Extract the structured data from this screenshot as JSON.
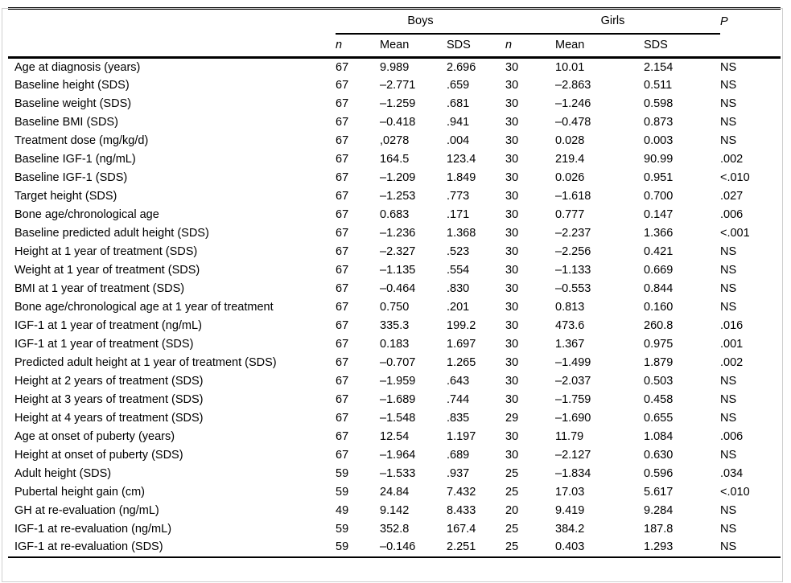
{
  "header": {
    "groups": [
      {
        "label": "Boys",
        "subcols": [
          "n",
          "Mean",
          "SDS"
        ]
      },
      {
        "label": "Girls",
        "subcols": [
          "n",
          "Mean",
          "SDS"
        ]
      }
    ],
    "p_label": "P"
  },
  "rows": [
    [
      "Age at diagnosis (years)",
      "67",
      "9.989",
      "2.696",
      "30",
      "10.01",
      "2.154",
      "NS"
    ],
    [
      "Baseline height (SDS)",
      "67",
      "–2.771",
      ".659",
      "30",
      "–2.863",
      "0.511",
      "NS"
    ],
    [
      "Baseline weight (SDS)",
      "67",
      "–1.259",
      ".681",
      "30",
      "–1.246",
      "0.598",
      "NS"
    ],
    [
      "Baseline BMI (SDS)",
      "67",
      "–0.418",
      ".941",
      "30",
      "–0.478",
      "0.873",
      "NS"
    ],
    [
      "Treatment dose (mg/kg/d)",
      "67",
      ",0278",
      ".004",
      "30",
      "0.028",
      "0.003",
      "NS"
    ],
    [
      "Baseline IGF-1 (ng/mL)",
      "67",
      "164.5",
      "123.4",
      "30",
      "219.4",
      "90.99",
      ".002"
    ],
    [
      "Baseline IGF-1 (SDS)",
      "67",
      "–1.209",
      "1.849",
      "30",
      "0.026",
      "0.951",
      "<.010"
    ],
    [
      "Target height (SDS)",
      "67",
      "–1.253",
      ".773",
      "30",
      "–1.618",
      "0.700",
      ".027"
    ],
    [
      "Bone age/chronological age",
      "67",
      "0.683",
      ".171",
      "30",
      "0.777",
      "0.147",
      ".006"
    ],
    [
      "Baseline predicted adult height (SDS)",
      "67",
      "–1.236",
      "1.368",
      "30",
      "–2.237",
      "1.366",
      "<.001"
    ],
    [
      "Height at 1 year of treatment (SDS)",
      "67",
      "–2.327",
      ".523",
      "30",
      "–2.256",
      "0.421",
      "NS"
    ],
    [
      "Weight at 1 year of treatment (SDS)",
      "67",
      "–1.135",
      ".554",
      "30",
      "–1.133",
      "0.669",
      "NS"
    ],
    [
      "BMI at 1 year of treatment (SDS)",
      "67",
      "–0.464",
      ".830",
      "30",
      "–0.553",
      "0.844",
      "NS"
    ],
    [
      "Bone age/chronological age at 1 year of treatment",
      "67",
      "0.750",
      ".201",
      "30",
      "0.813",
      "0.160",
      "NS"
    ],
    [
      "IGF-1 at 1 year of treatment (ng/mL)",
      "67",
      "335.3",
      "199.2",
      "30",
      "473.6",
      "260.8",
      ".016"
    ],
    [
      "IGF-1 at 1 year of treatment (SDS)",
      "67",
      "0.183",
      "1.697",
      "30",
      "1.367",
      "0.975",
      ".001"
    ],
    [
      "Predicted adult height at 1 year of treatment (SDS)",
      "67",
      "–0.707",
      "1.265",
      "30",
      "–1.499",
      "1.879",
      ".002"
    ],
    [
      "Height at 2 years of treatment (SDS)",
      "67",
      "–1.959",
      ".643",
      "30",
      "–2.037",
      "0.503",
      "NS"
    ],
    [
      "Height at 3 years of treatment (SDS)",
      "67",
      "–1.689",
      ".744",
      "30",
      "–1.759",
      "0.458",
      "NS"
    ],
    [
      "Height at 4 years of treatment (SDS)",
      "67",
      "–1.548",
      ".835",
      "29",
      "–1.690",
      "0.655",
      "NS"
    ],
    [
      "Age at onset of puberty (years)",
      "67",
      "12.54",
      "1.197",
      "30",
      "11.79",
      "1.084",
      ".006"
    ],
    [
      "Height at onset of puberty (SDS)",
      "67",
      "–1.964",
      ".689",
      "30",
      "–2.127",
      "0.630",
      "NS"
    ],
    [
      "Adult height (SDS)",
      "59",
      "–1.533",
      ".937",
      "25",
      "–1.834",
      "0.596",
      ".034"
    ],
    [
      "Pubertal height gain (cm)",
      "59",
      "24.84",
      "7.432",
      "25",
      "17.03",
      "5.617",
      "<.010"
    ],
    [
      "GH at re-evaluation (ng/mL)",
      "49",
      "9.142",
      "8.433",
      "20",
      "9.419",
      "9.284",
      "NS"
    ],
    [
      "IGF-1 at re-evaluation (ng/mL)",
      "59",
      "352.8",
      "167.4",
      "25",
      "384.2",
      "187.8",
      "NS"
    ],
    [
      "IGF-1 at re-evaluation (SDS)",
      "59",
      "–0.146",
      "2.251",
      "25",
      "0.403",
      "1.293",
      "NS"
    ]
  ]
}
